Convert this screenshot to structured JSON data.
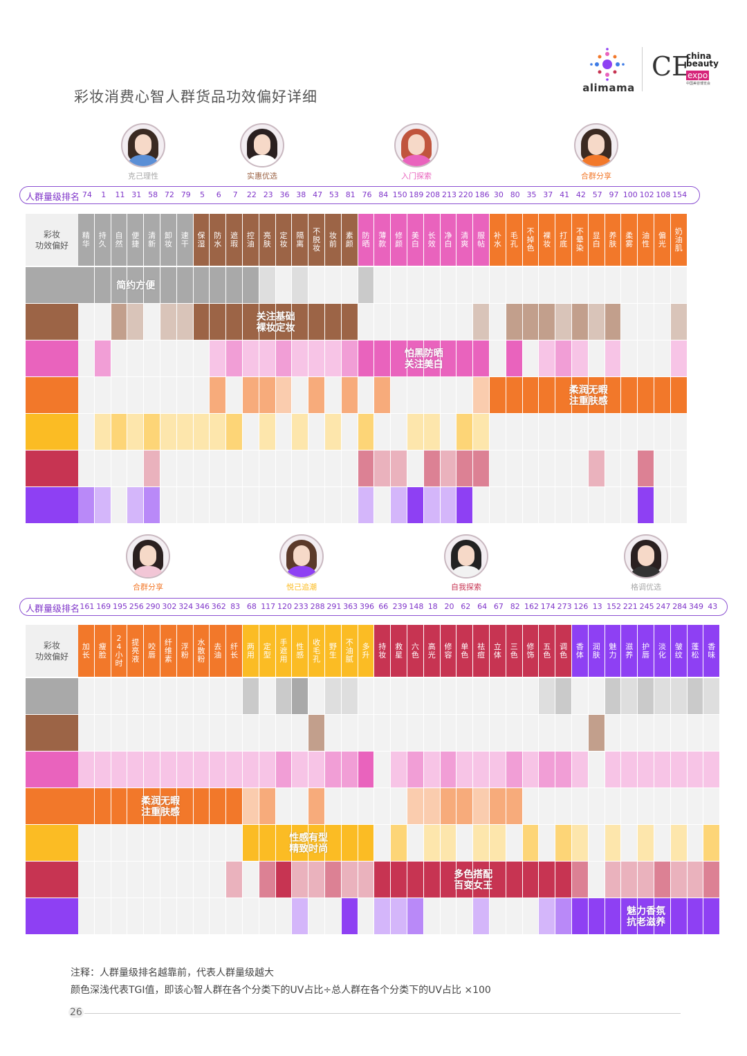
{
  "title": "彩妆消费心智人群货品功效偏好详细",
  "logos": {
    "alimama": "alimama",
    "cbe_mark": "CE",
    "cbe_line1": "china",
    "cbe_line2": "beauty",
    "cbe_line3": "expo",
    "cbe_small": "中国美容博览会"
  },
  "notes": {
    "line1": "注释：人群量级排名越靠前，代表人群量级越大",
    "line2": "颜色深浅代表TGI值，即该心智人群在各个分类下的UV占比÷总人群在各个分类下的UV占比 ×100"
  },
  "page_number": "26",
  "colors": {
    "gray": "#a9a9a9",
    "brown": "#9c6446",
    "pink": "#e963bd",
    "orange": "#f2782a",
    "yellow": "#fbbc24",
    "red": "#c73452",
    "purple": "#8e40f3",
    "empty": "#f2f2f2"
  },
  "chart_data": [
    {
      "type": "heatmap",
      "title": "彩妆消费心智人群货品功效偏好详细 (上)",
      "corner_label": "彩妆\n功效偏好",
      "rank_label": "人群量级排名",
      "personas": [
        "克己理性",
        "实惠优选",
        "入门探索",
        "合群分享"
      ],
      "rows": [
        "克己理性",
        "实惠优选",
        "入门探索",
        "合群分享",
        "悦己追潮",
        "自我探索",
        "格调优选"
      ],
      "row_colors": [
        "gray",
        "brown",
        "pink",
        "orange",
        "yellow",
        "red",
        "purple"
      ],
      "ranks": [
        74,
        1,
        11,
        31,
        58,
        72,
        79,
        5,
        6,
        7,
        22,
        23,
        36,
        38,
        47,
        53,
        81,
        76,
        84,
        150,
        189,
        208,
        213,
        220,
        186,
        30,
        80,
        35,
        37,
        41,
        42,
        57,
        97,
        100,
        102,
        108,
        154
      ],
      "categories": [
        "精华",
        "持久",
        "自然",
        "便捷",
        "清新",
        "卸妆",
        "速干",
        "保湿",
        "防水",
        "遮瑕",
        "控油",
        "亮肤",
        "定妆",
        "隔离",
        "不脱妆",
        "妆前",
        "素颜",
        "防晒",
        "薄款",
        "修颜",
        "美白",
        "长效",
        "净白",
        "清爽",
        "服帖",
        "补水",
        "毛孔",
        "不掉色",
        "裸妆",
        "打底",
        "不晕染",
        "显白",
        "养肤",
        "柔雾",
        "油性",
        "偏光",
        "奶油肌"
      ],
      "column_groups": [
        {
          "row": 0,
          "start": 0,
          "end": 6,
          "callout": "简约方便"
        },
        {
          "row": 1,
          "start": 7,
          "end": 16,
          "callout": "关注基础\n裸妆定妆"
        },
        {
          "row": 2,
          "start": 17,
          "end": 24,
          "callout": "怕黑防晒\n关注美白"
        },
        {
          "row": 3,
          "start": 25,
          "end": 36,
          "callout": "柔润无暇\n注重肤感"
        }
      ],
      "tgi_intensity": [
        [
          3,
          3,
          3,
          3,
          3,
          3,
          3,
          3,
          3,
          3,
          3,
          1,
          0,
          1,
          0,
          0,
          0,
          2,
          0,
          0,
          0,
          0,
          0,
          0,
          0,
          0,
          0,
          0,
          0,
          0,
          0,
          0,
          0,
          0,
          0,
          0,
          0
        ],
        [
          0,
          0,
          2,
          1,
          0,
          1,
          1,
          3,
          3,
          3,
          3,
          3,
          3,
          3,
          3,
          3,
          3,
          0,
          0,
          0,
          0,
          0,
          0,
          0,
          1,
          0,
          2,
          2,
          2,
          1,
          2,
          1,
          2,
          0,
          0,
          0,
          1
        ],
        [
          0,
          2,
          0,
          0,
          0,
          0,
          0,
          0,
          1,
          2,
          1,
          1,
          2,
          1,
          1,
          1,
          2,
          3,
          3,
          3,
          3,
          3,
          3,
          3,
          3,
          0,
          3,
          0,
          1,
          2,
          1,
          0,
          1,
          0,
          0,
          0,
          1
        ],
        [
          0,
          0,
          0,
          0,
          0,
          0,
          0,
          0,
          2,
          0,
          2,
          2,
          1,
          0,
          2,
          0,
          2,
          0,
          2,
          0,
          0,
          0,
          0,
          0,
          1,
          3,
          3,
          3,
          3,
          3,
          3,
          3,
          3,
          3,
          3,
          3,
          3
        ],
        [
          0,
          1,
          2,
          1,
          2,
          1,
          1,
          1,
          1,
          2,
          0,
          1,
          0,
          1,
          0,
          1,
          0,
          2,
          0,
          0,
          1,
          1,
          0,
          2,
          1,
          0,
          0,
          0,
          0,
          0,
          0,
          0,
          0,
          0,
          0,
          0,
          0
        ],
        [
          0,
          0,
          0,
          0,
          1,
          0,
          0,
          0,
          0,
          0,
          0,
          0,
          0,
          0,
          0,
          0,
          0,
          2,
          1,
          1,
          0,
          2,
          1,
          2,
          2,
          0,
          0,
          0,
          0,
          0,
          0,
          1,
          0,
          0,
          2,
          0,
          0
        ],
        [
          2,
          1,
          0,
          1,
          2,
          0,
          0,
          0,
          0,
          0,
          0,
          0,
          0,
          0,
          0,
          0,
          0,
          1,
          0,
          1,
          3,
          1,
          1,
          3,
          0,
          0,
          0,
          0,
          0,
          0,
          0,
          0,
          0,
          0,
          3,
          0,
          0
        ]
      ]
    },
    {
      "type": "heatmap",
      "title": "彩妆消费心智人群货品功效偏好详细 (下)",
      "corner_label": "彩妆\n功效偏好",
      "rank_label": "人群量级排名",
      "personas": [
        "合群分享",
        "悦己追潮",
        "自我探索",
        "格调优选"
      ],
      "rows": [
        "克己理性",
        "实惠优选",
        "入门探索",
        "合群分享",
        "悦己追潮",
        "自我探索",
        "格调优选"
      ],
      "row_colors": [
        "gray",
        "brown",
        "pink",
        "orange",
        "yellow",
        "red",
        "purple"
      ],
      "ranks": [
        161,
        169,
        195,
        256,
        290,
        302,
        324,
        346,
        362,
        83,
        68,
        117,
        120,
        233,
        288,
        291,
        363,
        396,
        66,
        239,
        148,
        18,
        20,
        62,
        64,
        67,
        82,
        162,
        174,
        273,
        126,
        13,
        152,
        221,
        245,
        247,
        284,
        349,
        43
      ],
      "categories": [
        "加长",
        "瘦脸",
        "24小时",
        "提亮液",
        "咬唇",
        "纤维素",
        "浮粉",
        "水散粉",
        "去油",
        "纤长",
        "两用",
        "定型",
        "手遮用",
        "性感",
        "收毛孔",
        "野生",
        "不油腻",
        "多升",
        "持妆",
        "救星",
        "六色",
        "高光",
        "修容",
        "单色",
        "祛痘",
        "立体",
        "三色",
        "修饰",
        "五色",
        "调色",
        "香体",
        "润肤",
        "魅力",
        "滋养",
        "护唇",
        "淡化",
        "皱纹",
        "蓬松",
        "香味"
      ],
      "column_groups": [
        {
          "row": 3,
          "start": 0,
          "end": 9,
          "callout": "柔润无暇\n注重肤感"
        },
        {
          "row": 4,
          "start": 10,
          "end": 17,
          "callout": "性感有型\n精致时尚"
        },
        {
          "row": 5,
          "start": 18,
          "end": 29,
          "callout": "多色搭配\n百变女王"
        },
        {
          "row": 6,
          "start": 30,
          "end": 38,
          "callout": "魅力香氛\n抗老滋养"
        }
      ],
      "tgi_intensity": [
        [
          0,
          0,
          0,
          0,
          0,
          0,
          0,
          0,
          0,
          0,
          2,
          0,
          2,
          3,
          0,
          1,
          1,
          0,
          0,
          0,
          0,
          0,
          0,
          0,
          0,
          0,
          0,
          0,
          1,
          2,
          0,
          0,
          2,
          1,
          2,
          1,
          1,
          2,
          1
        ],
        [
          0,
          0,
          0,
          0,
          0,
          0,
          0,
          0,
          0,
          0,
          0,
          0,
          0,
          0,
          2,
          0,
          0,
          0,
          0,
          0,
          0,
          0,
          0,
          0,
          0,
          0,
          0,
          0,
          0,
          0,
          0,
          2,
          0,
          0,
          0,
          0,
          0,
          0,
          0
        ],
        [
          1,
          1,
          1,
          1,
          1,
          1,
          1,
          1,
          1,
          1,
          1,
          1,
          2,
          1,
          1,
          2,
          2,
          3,
          0,
          1,
          2,
          1,
          2,
          1,
          1,
          1,
          2,
          1,
          2,
          2,
          1,
          0,
          1,
          1,
          1,
          1,
          1,
          1,
          1
        ],
        [
          3,
          3,
          3,
          3,
          3,
          3,
          3,
          3,
          3,
          3,
          1,
          2,
          0,
          0,
          2,
          0,
          0,
          0,
          0,
          0,
          1,
          1,
          2,
          2,
          1,
          2,
          2,
          0,
          0,
          0,
          0,
          0,
          0,
          0,
          0,
          0,
          0,
          0,
          0
        ],
        [
          0,
          0,
          0,
          0,
          0,
          0,
          0,
          0,
          0,
          0,
          3,
          3,
          3,
          3,
          3,
          3,
          3,
          3,
          0,
          2,
          0,
          1,
          1,
          0,
          1,
          1,
          0,
          2,
          0,
          2,
          1,
          0,
          1,
          0,
          1,
          0,
          1,
          0,
          2
        ],
        [
          0,
          0,
          0,
          0,
          0,
          0,
          0,
          0,
          0,
          1,
          0,
          2,
          3,
          1,
          1,
          2,
          1,
          1,
          3,
          3,
          3,
          3,
          3,
          3,
          3,
          3,
          3,
          3,
          3,
          3,
          2,
          0,
          1,
          1,
          1,
          2,
          1,
          1,
          2
        ],
        [
          0,
          0,
          0,
          0,
          0,
          0,
          0,
          0,
          0,
          0,
          0,
          0,
          0,
          1,
          0,
          0,
          3,
          0,
          1,
          1,
          2,
          0,
          0,
          0,
          1,
          0,
          0,
          0,
          1,
          2,
          3,
          3,
          3,
          3,
          3,
          3,
          3,
          3,
          3
        ]
      ]
    }
  ]
}
